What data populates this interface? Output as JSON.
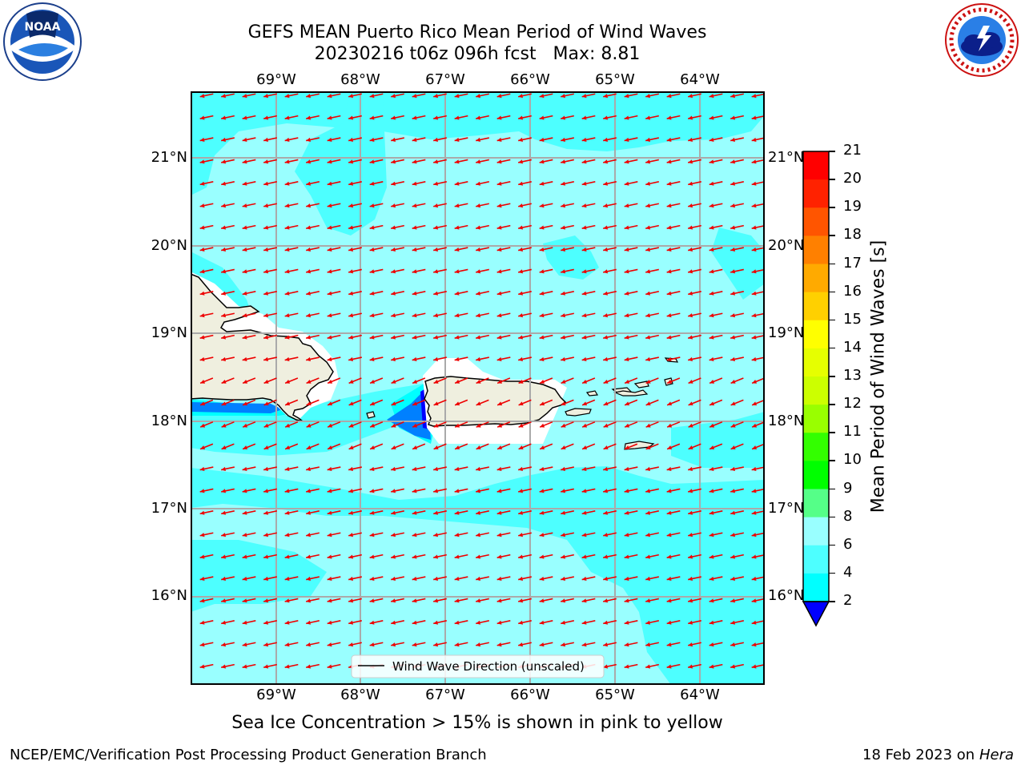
{
  "title": {
    "line1": "GEFS MEAN Puerto Rico Mean Period of Wind Waves",
    "line2": "20230216 t06z 096h fcst   Max: 8.81"
  },
  "map": {
    "lon_ticks": [
      "69°W",
      "68°W",
      "67°W",
      "66°W",
      "65°W",
      "64°W"
    ],
    "lat_ticks": [
      "21°N",
      "20°N",
      "19°N",
      "18°N",
      "17°N",
      "16°N"
    ],
    "background_color": "#99ffff",
    "band_color": "#4dffff",
    "low_period_color": "#0080ff",
    "lowest_period_color": "#0000ff",
    "land_color": "#efefdf",
    "arrow_color": "#ee0000",
    "wind_direction": "toward southwest",
    "legend_label": "Wind Wave Direction (unscaled)"
  },
  "colorbar": {
    "label": "Mean Period of Wind Waves [s]",
    "ticks": [
      "21",
      "20",
      "19",
      "18",
      "17",
      "16",
      "15",
      "14",
      "13",
      "12",
      "11",
      "10",
      "9",
      "8",
      "6",
      "4",
      "2"
    ],
    "colors": [
      "#ff0000",
      "#ff2200",
      "#ff5500",
      "#ff8000",
      "#ffaa00",
      "#ffd000",
      "#ffff00",
      "#e6ff00",
      "#ccff00",
      "#99ff00",
      "#33ff00",
      "#00ff00",
      "#55ff88",
      "#99ffff",
      "#4dffff",
      "#00ffff",
      "#0080ff"
    ],
    "extend_color": "#0000ff"
  },
  "note": "Sea Ice Concentration > 15% is shown in pink to yellow",
  "footer": {
    "left": "NCEP/EMC/Verification Post Processing Product Generation Branch",
    "date": "18 Feb 2023 on",
    "machine": "Hera"
  },
  "logos": {
    "noaa": "NOAA",
    "nws": "NATIONAL WEATHER SERVICE"
  }
}
